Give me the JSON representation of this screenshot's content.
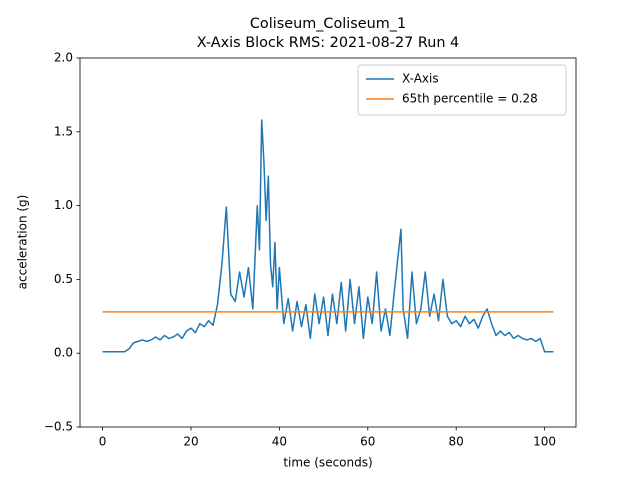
{
  "chart_data": {
    "type": "line",
    "title": "Coliseum_Coliseum_1",
    "subtitle": "X-Axis Block RMS: 2021-08-27 Run 4",
    "xlabel": "time (seconds)",
    "ylabel": "acceleration (g)",
    "xlim": [
      -5.1,
      107.1
    ],
    "ylim": [
      -0.5,
      2.0
    ],
    "xticks": [
      0,
      20,
      40,
      60,
      80,
      100
    ],
    "yticks": [
      {
        "value": -0.5,
        "label": "−0.5"
      },
      {
        "value": 0,
        "label": "0.0"
      },
      0.5,
      {
        "value": 1,
        "label": "1.0"
      },
      1.5,
      {
        "value": 2,
        "label": "2.0"
      }
    ],
    "legend": "upper right",
    "series": [
      {
        "name": "X-Axis",
        "color": "#1f77b4",
        "x": [
          0,
          1,
          2,
          3,
          4,
          5,
          6,
          7,
          8,
          9,
          10,
          11,
          12,
          13,
          14,
          15,
          16,
          17,
          18,
          19,
          20,
          21,
          22,
          23,
          24,
          25,
          26,
          27,
          28,
          28.5,
          29,
          30,
          31,
          32,
          33,
          34,
          35,
          35.5,
          36,
          36.5,
          37,
          37.5,
          38,
          38.5,
          39,
          39.5,
          40,
          41,
          42,
          43,
          44,
          45,
          46,
          47,
          48,
          49,
          50,
          51,
          52,
          53,
          54,
          55,
          56,
          57,
          58,
          59,
          60,
          61,
          62,
          63,
          64,
          65,
          66,
          67,
          67.5,
          68,
          69,
          70,
          71,
          72,
          73,
          74,
          75,
          76,
          77,
          78,
          79,
          80,
          81,
          82,
          83,
          84,
          85,
          86,
          87,
          88,
          89,
          90,
          91,
          92,
          93,
          94,
          95,
          96,
          97,
          98,
          99,
          100,
          101,
          102
        ],
        "values": [
          0.01,
          0.01,
          0.01,
          0.01,
          0.01,
          0.01,
          0.03,
          0.07,
          0.08,
          0.09,
          0.08,
          0.09,
          0.11,
          0.09,
          0.12,
          0.1,
          0.11,
          0.13,
          0.1,
          0.15,
          0.17,
          0.14,
          0.2,
          0.18,
          0.22,
          0.19,
          0.33,
          0.6,
          0.99,
          0.7,
          0.4,
          0.35,
          0.55,
          0.38,
          0.58,
          0.3,
          1.0,
          0.7,
          1.58,
          1.3,
          0.9,
          1.2,
          0.6,
          0.45,
          0.75,
          0.3,
          0.58,
          0.2,
          0.37,
          0.15,
          0.35,
          0.18,
          0.33,
          0.1,
          0.4,
          0.2,
          0.38,
          0.12,
          0.4,
          0.2,
          0.48,
          0.15,
          0.5,
          0.2,
          0.45,
          0.1,
          0.38,
          0.2,
          0.55,
          0.15,
          0.3,
          0.12,
          0.42,
          0.7,
          0.84,
          0.3,
          0.1,
          0.55,
          0.2,
          0.3,
          0.55,
          0.25,
          0.4,
          0.22,
          0.5,
          0.25,
          0.2,
          0.22,
          0.18,
          0.25,
          0.2,
          0.23,
          0.17,
          0.25,
          0.3,
          0.2,
          0.12,
          0.15,
          0.12,
          0.14,
          0.1,
          0.12,
          0.1,
          0.09,
          0.1,
          0.08,
          0.1,
          0.01,
          0.01,
          0.01
        ]
      },
      {
        "name": "65th percentile = 0.28",
        "color": "#ff7f0e",
        "x": [
          0,
          102
        ],
        "values": [
          0.28,
          0.28
        ]
      }
    ]
  }
}
